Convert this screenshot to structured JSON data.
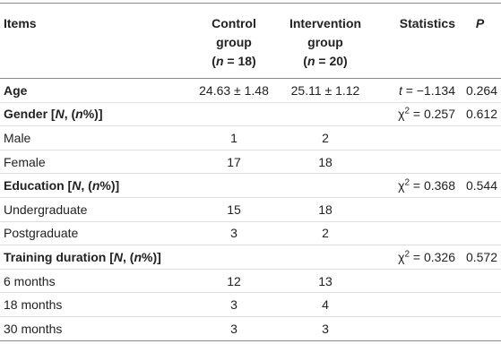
{
  "table": {
    "header": [
      [
        [
          "Items"
        ]
      ],
      [
        [
          "Control"
        ],
        [
          "group"
        ],
        [
          "(",
          {
            "text": "n",
            "style": "italic"
          },
          " = 18)"
        ]
      ],
      [
        [
          "Intervention"
        ],
        [
          "group"
        ],
        [
          "(",
          {
            "text": "n",
            "style": "italic"
          },
          " = 20)"
        ]
      ],
      [
        [
          "Statistics"
        ]
      ],
      [
        [
          {
            "text": "P",
            "style": "italic"
          }
        ]
      ]
    ],
    "rows": [
      {
        "bold": true,
        "cells": [
          [
            "Age"
          ],
          [
            "24.63 ± 1.48"
          ],
          [
            "25.11 ± 1.12"
          ],
          [
            {
              "text": "t",
              "style": "italic"
            },
            " = −1.134"
          ],
          [
            "0.264"
          ]
        ]
      },
      {
        "bold": true,
        "cells": [
          [
            "Gender [",
            {
              "text": "N",
              "style": "italic"
            },
            ", (",
            {
              "text": "n",
              "style": "italic"
            },
            "%)]"
          ],
          null,
          null,
          [
            "χ",
            {
              "text": "2",
              "style": "sup"
            },
            " = 0.257"
          ],
          [
            "0.612"
          ]
        ]
      },
      {
        "bold": false,
        "cells": [
          [
            "Male"
          ],
          [
            "1"
          ],
          [
            "2"
          ],
          null,
          null
        ]
      },
      {
        "bold": false,
        "cells": [
          [
            "Female"
          ],
          [
            "17"
          ],
          [
            "18"
          ],
          null,
          null
        ]
      },
      {
        "bold": true,
        "cells": [
          [
            "Education [",
            {
              "text": "N",
              "style": "italic"
            },
            ", (",
            {
              "text": "n",
              "style": "italic"
            },
            "%)]"
          ],
          null,
          null,
          [
            "χ",
            {
              "text": "2",
              "style": "sup"
            },
            " = 0.368"
          ],
          [
            "0.544"
          ]
        ]
      },
      {
        "bold": false,
        "cells": [
          [
            "Undergraduate"
          ],
          [
            "15"
          ],
          [
            "18"
          ],
          null,
          null
        ]
      },
      {
        "bold": false,
        "cells": [
          [
            "Postgraduate"
          ],
          [
            "3"
          ],
          [
            "2"
          ],
          null,
          null
        ]
      },
      {
        "bold": true,
        "cells": [
          [
            "Training duration [",
            {
              "text": "N",
              "style": "italic"
            },
            ", (",
            {
              "text": "n",
              "style": "italic"
            },
            "%)]"
          ],
          null,
          null,
          [
            "χ",
            {
              "text": "2",
              "style": "sup"
            },
            " = 0.326"
          ],
          [
            "0.572"
          ]
        ]
      },
      {
        "bold": false,
        "cells": [
          [
            "6 months"
          ],
          [
            "12"
          ],
          [
            "13"
          ],
          null,
          null
        ]
      },
      {
        "bold": false,
        "cells": [
          [
            "18 months"
          ],
          [
            "3"
          ],
          [
            "4"
          ],
          null,
          null
        ]
      },
      {
        "bold": false,
        "cells": [
          [
            "30 months"
          ],
          [
            "3"
          ],
          [
            "3"
          ],
          null,
          null
        ]
      }
    ]
  }
}
